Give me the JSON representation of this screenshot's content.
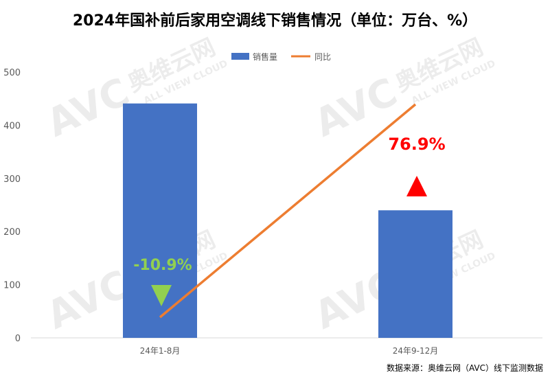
{
  "title": "2024年国补前后家用空调线下销售情况（单位：万台、%）",
  "source": "数据来源：奥维云网（AVC）线下监测数据",
  "watermark": {
    "brand": "AVC",
    "cn": "奥维云网",
    "en": "ALL VIEW CLOUD"
  },
  "chart_data": {
    "type": "bar+line",
    "categories": [
      "24年1-8月",
      "24年9-12月"
    ],
    "series": [
      {
        "name": "销售量",
        "type": "bar",
        "values": [
          441,
          240
        ],
        "color": "#4472C4"
      },
      {
        "name": "同比",
        "type": "line",
        "values": [
          -10.9,
          76.9
        ],
        "color": "#ED7D31"
      }
    ],
    "data_labels": [
      {
        "text": "-10.9%",
        "color": "#92D050",
        "marker": "down-triangle"
      },
      {
        "text": "76.9%",
        "color": "#FF0000",
        "marker": "up-triangle"
      }
    ],
    "ylim": [
      0,
      500
    ],
    "yticks": [
      "0",
      "100",
      "200",
      "300",
      "400",
      "500"
    ],
    "grid": false,
    "legend": "top"
  }
}
